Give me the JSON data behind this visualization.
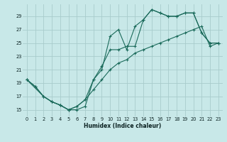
{
  "xlabel": "Humidex (Indice chaleur)",
  "bg_color": "#c8e8e8",
  "grid_color": "#a8cccc",
  "line_color": "#1a6a5a",
  "xlim": [
    -0.5,
    23.5
  ],
  "ylim": [
    14.0,
    30.8
  ],
  "xticks": [
    0,
    1,
    2,
    3,
    4,
    5,
    6,
    7,
    8,
    9,
    10,
    11,
    12,
    13,
    14,
    15,
    16,
    17,
    18,
    19,
    20,
    21,
    22,
    23
  ],
  "yticks": [
    15,
    17,
    19,
    21,
    23,
    25,
    27,
    29
  ],
  "line1_x": [
    0,
    1,
    2,
    3,
    4,
    5,
    6,
    7,
    8,
    9,
    10,
    11,
    12,
    13,
    14,
    15,
    16,
    17,
    18,
    19,
    20,
    21,
    22,
    23
  ],
  "line1_y": [
    19.5,
    18.5,
    17.0,
    16.2,
    15.7,
    15.0,
    15.0,
    15.5,
    19.5,
    21.0,
    26.0,
    27.0,
    24.0,
    27.5,
    28.5,
    30.0,
    29.5,
    29.0,
    29.0,
    29.5,
    29.5,
    26.5,
    25.0,
    25.0
  ],
  "line2_x": [
    0,
    2,
    3,
    4,
    5,
    6,
    7,
    8,
    9,
    10,
    11,
    12,
    13,
    14,
    15,
    16,
    17,
    18,
    19,
    20,
    21,
    22,
    23
  ],
  "line2_y": [
    19.5,
    17.0,
    16.2,
    15.7,
    15.0,
    15.5,
    16.5,
    19.5,
    21.5,
    24.0,
    24.0,
    24.5,
    24.5,
    28.5,
    30.0,
    29.5,
    29.0,
    29.0,
    29.5,
    29.5,
    26.5,
    25.0,
    25.0
  ],
  "line3_x": [
    0,
    1,
    2,
    3,
    4,
    5,
    6,
    7,
    8,
    9,
    10,
    11,
    12,
    13,
    14,
    15,
    16,
    17,
    18,
    19,
    20,
    21,
    22,
    23
  ],
  "line3_y": [
    19.5,
    18.5,
    17.0,
    16.2,
    15.7,
    15.0,
    15.5,
    16.5,
    18.0,
    19.5,
    21.0,
    22.0,
    22.5,
    23.5,
    24.0,
    24.5,
    25.0,
    25.5,
    26.0,
    26.5,
    27.0,
    27.5,
    24.5,
    25.0
  ]
}
